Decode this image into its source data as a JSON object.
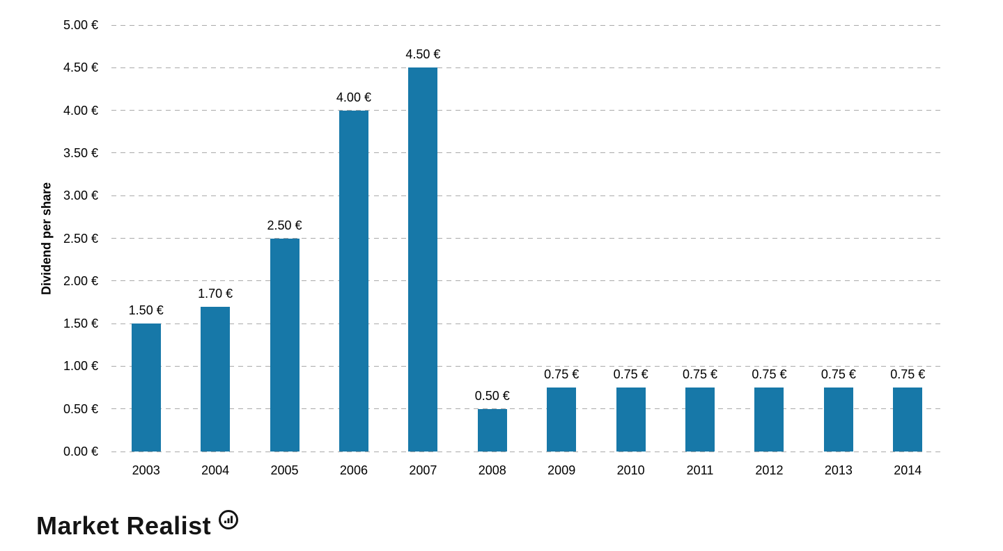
{
  "chart_data": {
    "type": "bar",
    "title": "",
    "xlabel": "",
    "ylabel": "Dividend per share",
    "categories": [
      "2003",
      "2004",
      "2005",
      "2006",
      "2007",
      "2008",
      "2009",
      "2010",
      "2011",
      "2012",
      "2013",
      "2014"
    ],
    "values": [
      1.5,
      1.7,
      2.5,
      4.0,
      4.5,
      0.5,
      0.75,
      0.75,
      0.75,
      0.75,
      0.75,
      0.75
    ],
    "value_labels": [
      "1.50 €",
      "1.70 €",
      "2.50 €",
      "4.00 €",
      "4.50 €",
      "0.50 €",
      "0.75 €",
      "0.75 €",
      "0.75 €",
      "0.75 €",
      "0.75 €",
      "0.75 €"
    ],
    "y_ticks": [
      {
        "value": 5.0,
        "label": "5.00 €"
      },
      {
        "value": 4.5,
        "label": "4.50 €"
      },
      {
        "value": 4.0,
        "label": "4.00 €"
      },
      {
        "value": 3.5,
        "label": "3.50 €"
      },
      {
        "value": 3.0,
        "label": "3.00 €"
      },
      {
        "value": 2.5,
        "label": "2.50 €"
      },
      {
        "value": 2.0,
        "label": "2.00 €"
      },
      {
        "value": 1.5,
        "label": "1.50 €"
      },
      {
        "value": 1.0,
        "label": "1.00 €"
      },
      {
        "value": 0.5,
        "label": "0.50 €"
      },
      {
        "value": 0.0,
        "label": "0.00 €"
      }
    ],
    "ylim": [
      0,
      5
    ],
    "grid": "horizontal-dashed",
    "legend": "none",
    "bar_color": "#1778a8"
  },
  "colors": {
    "bar": "#1778a8",
    "gridline": "#a9a9a9",
    "text": "#000000",
    "logo": "#141414"
  },
  "branding": {
    "wordmark": "Market Realist",
    "logo_icon": "bar-chart-circle-icon"
  }
}
